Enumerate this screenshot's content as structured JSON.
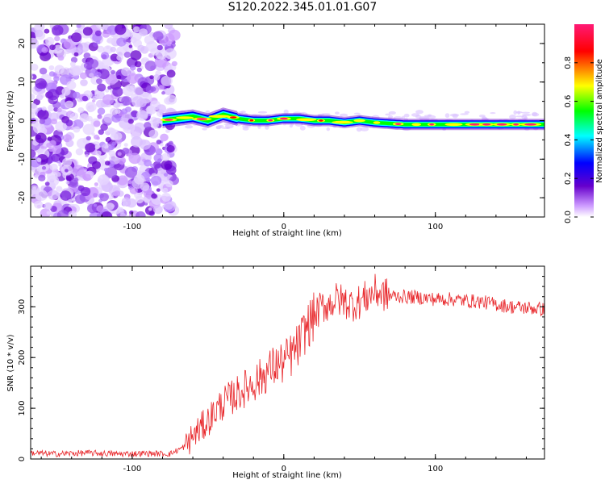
{
  "title": "S120.2022.345.01.01.G07",
  "chart_data": [
    {
      "type": "heatmap",
      "xlabel": "Height of straight line (km)",
      "ylabel": "Frequency (Hz)",
      "xlim": [
        -167,
        172
      ],
      "ylim": [
        -25,
        25
      ],
      "xticks": [
        -100,
        0,
        100
      ],
      "yticks": [
        -20,
        -10,
        0,
        10,
        20
      ],
      "colorbar": {
        "label": "Normalized spectral amplitude",
        "ticks": [
          0.0,
          0.2,
          0.4,
          0.6,
          0.8
        ],
        "range": [
          0,
          1
        ],
        "colors": [
          "#ffffff",
          "#cc99ff",
          "#6600cc",
          "#0000ff",
          "#00ffff",
          "#00ff00",
          "#ffff00",
          "#ff0000",
          "#ff0080"
        ]
      },
      "signal_track": {
        "description_points_x": [
          -80,
          -70,
          -60,
          -50,
          -40,
          -30,
          -20,
          -10,
          0,
          10,
          20,
          30,
          40,
          50,
          60,
          80,
          100,
          120,
          140,
          160,
          172
        ],
        "frequency_hz": [
          0,
          0.5,
          1,
          0,
          1.5,
          0.5,
          0,
          0,
          0.5,
          0.5,
          0,
          0,
          -0.5,
          0,
          -0.5,
          -1,
          -1,
          -1,
          -1,
          -1,
          -1
        ]
      },
      "noise_region_x": [
        -167,
        -75
      ]
    },
    {
      "type": "line",
      "xlabel": "Height of straight line (km)",
      "ylabel": "SNR (10 * v/v)",
      "xlim": [
        -167,
        172
      ],
      "ylim": [
        0,
        380
      ],
      "xticks": [
        -100,
        0,
        100
      ],
      "yticks": [
        0,
        100,
        200,
        300
      ],
      "series": [
        {
          "color": "#e8262a",
          "x": [
            -167,
            -150,
            -130,
            -110,
            -90,
            -75,
            -65,
            -60,
            -55,
            -50,
            -45,
            -40,
            -35,
            -30,
            -25,
            -20,
            -15,
            -10,
            -5,
            0,
            5,
            10,
            15,
            20,
            25,
            30,
            35,
            40,
            45,
            50,
            55,
            60,
            65,
            70,
            80,
            90,
            100,
            110,
            120,
            130,
            140,
            150,
            160,
            172
          ],
          "y": [
            12,
            10,
            12,
            10,
            11,
            10,
            25,
            45,
            60,
            75,
            95,
            110,
            120,
            130,
            140,
            150,
            160,
            175,
            185,
            190,
            205,
            225,
            260,
            280,
            300,
            305,
            315,
            310,
            305,
            310,
            320,
            330,
            325,
            322,
            320,
            318,
            315,
            315,
            312,
            310,
            305,
            300,
            298,
            295
          ]
        }
      ]
    }
  ]
}
